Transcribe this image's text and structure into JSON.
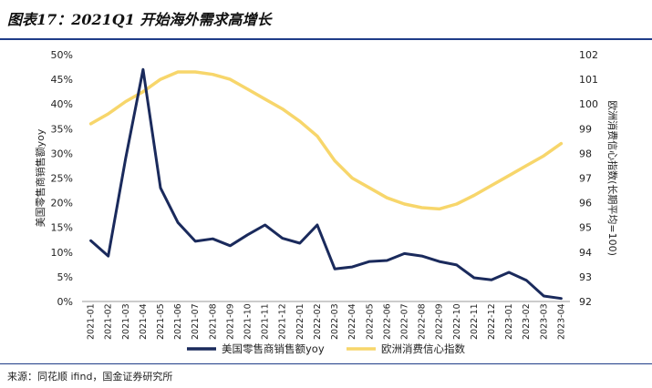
{
  "figure": {
    "title": "图表17：2021Q1 开始海外需求高增长",
    "source": "来源：同花顺 ifind，国金证券研究所"
  },
  "chart_data": {
    "type": "line",
    "title": "2021Q1 开始海外需求高增长",
    "categories": [
      "2021-01",
      "2021-02",
      "2021-03",
      "2021-04",
      "2021-05",
      "2021-06",
      "2021-07",
      "2021-08",
      "2021-09",
      "2021-10",
      "2021-11",
      "2021-12",
      "2022-01",
      "2022-02",
      "2022-03",
      "2022-04",
      "2022-05",
      "2022-06",
      "2022-07",
      "2022-08",
      "2022-09",
      "2022-10",
      "2022-11",
      "2022-12",
      "2023-01",
      "2023-02",
      "2023-03",
      "2023-04"
    ],
    "series": [
      {
        "name": "美国零售商销售额yoy",
        "axis": "left",
        "color": "#1a2a5c",
        "values": [
          12.3,
          9.2,
          29.0,
          47.0,
          23.0,
          16.0,
          12.2,
          12.7,
          11.3,
          13.5,
          15.5,
          12.8,
          11.8,
          15.5,
          6.6,
          7.0,
          8.1,
          8.3,
          9.7,
          9.2,
          8.1,
          7.4,
          4.8,
          4.4,
          5.9,
          4.3,
          1.1,
          0.6
        ]
      },
      {
        "name": "欧洲消费信心指数",
        "axis": "right",
        "color": "#f7d66b",
        "values": [
          99.2,
          99.6,
          100.1,
          100.5,
          101.0,
          101.3,
          101.3,
          101.2,
          101.0,
          100.6,
          100.2,
          99.8,
          99.3,
          98.7,
          97.7,
          97.0,
          96.6,
          96.2,
          95.95,
          95.8,
          95.75,
          95.95,
          96.3,
          96.7,
          97.1,
          97.5,
          97.9,
          98.4
        ]
      }
    ],
    "y_left": {
      "label": "美国零售商销售额yoy",
      "ticks": [
        "0%",
        "5%",
        "10%",
        "15%",
        "20%",
        "25%",
        "30%",
        "35%",
        "40%",
        "45%",
        "50%"
      ],
      "ylim": [
        0,
        50
      ]
    },
    "y_right": {
      "label": "欧洲消费信心指数(长期平均=100)",
      "ticks": [
        "92",
        "93",
        "94",
        "95",
        "96",
        "97",
        "98",
        "99",
        "100",
        "101",
        "102"
      ],
      "ylim": [
        92,
        102
      ]
    },
    "legend": {
      "placement": "bottom",
      "items": [
        "美国零售商销售额yoy",
        "欧洲消费信心指数"
      ]
    },
    "grid": false
  }
}
